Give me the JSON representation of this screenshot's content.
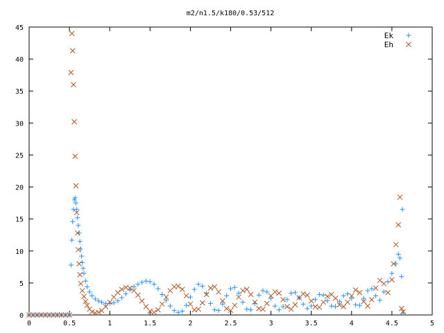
{
  "chart_data": {
    "type": "scatter",
    "title": "m2/n1.5/k180/0.53/512",
    "xlim": [
      0,
      5
    ],
    "ylim": [
      0,
      45
    ],
    "xticks": [
      "0",
      "0.5",
      "1",
      "1.5",
      "2",
      "2.5",
      "3",
      "3.5",
      "4",
      "4.5",
      "5"
    ],
    "yticks": [
      "0",
      "5",
      "10",
      "15",
      "20",
      "25",
      "30",
      "35",
      "40",
      "45"
    ],
    "grid": false,
    "legend_position": "top-right",
    "series": [
      {
        "name": "Ek",
        "marker": "plus",
        "color": "#1e90ff",
        "points": [
          [
            0.0,
            0
          ],
          [
            0.05,
            0
          ],
          [
            0.1,
            0
          ],
          [
            0.15,
            0
          ],
          [
            0.2,
            0
          ],
          [
            0.25,
            0
          ],
          [
            0.3,
            0
          ],
          [
            0.35,
            0
          ],
          [
            0.4,
            0
          ],
          [
            0.45,
            0
          ],
          [
            0.5,
            0
          ],
          [
            0.52,
            7.8
          ],
          [
            0.53,
            11.7
          ],
          [
            0.54,
            14.6
          ],
          [
            0.55,
            16.5
          ],
          [
            0.56,
            18.0
          ],
          [
            0.57,
            18.3
          ],
          [
            0.58,
            17.5
          ],
          [
            0.59,
            16.5
          ],
          [
            0.6,
            15.2
          ],
          [
            0.61,
            14.0
          ],
          [
            0.62,
            12.8
          ],
          [
            0.63,
            11.5
          ],
          [
            0.64,
            10.3
          ],
          [
            0.65,
            9.2
          ],
          [
            0.66,
            8.2
          ],
          [
            0.67,
            7.3
          ],
          [
            0.68,
            6.5
          ],
          [
            0.7,
            5.3
          ],
          [
            0.72,
            4.4
          ],
          [
            0.75,
            3.6
          ],
          [
            0.78,
            3.0
          ],
          [
            0.82,
            2.5
          ],
          [
            0.86,
            2.2
          ],
          [
            0.9,
            2.0
          ],
          [
            0.95,
            1.8
          ],
          [
            1.0,
            1.8
          ],
          [
            1.05,
            1.9
          ],
          [
            1.1,
            2.2
          ],
          [
            1.15,
            2.7
          ],
          [
            1.2,
            3.3
          ],
          [
            1.25,
            3.9
          ],
          [
            1.3,
            4.4
          ],
          [
            1.35,
            4.8
          ],
          [
            1.4,
            5.1
          ],
          [
            1.45,
            5.3
          ],
          [
            1.5,
            5.2
          ],
          [
            1.55,
            4.8
          ],
          [
            1.6,
            4.1
          ],
          [
            1.65,
            3.2
          ],
          [
            1.7,
            2.3
          ],
          [
            1.75,
            1.4
          ],
          [
            1.8,
            0.7
          ],
          [
            1.85,
            0.4
          ],
          [
            1.9,
            0.6
          ],
          [
            1.95,
            1.5
          ],
          [
            2.0,
            2.8
          ],
          [
            2.05,
            4.0
          ],
          [
            2.1,
            4.8
          ],
          [
            2.15,
            4.5
          ],
          [
            2.2,
            3.4
          ],
          [
            2.25,
            1.8
          ],
          [
            2.3,
            0.8
          ],
          [
            2.35,
            0.7
          ],
          [
            2.4,
            1.7
          ],
          [
            2.45,
            3.0
          ],
          [
            2.5,
            4.1
          ],
          [
            2.55,
            4.3
          ],
          [
            2.6,
            3.4
          ],
          [
            2.65,
            2.0
          ],
          [
            2.7,
            0.9
          ],
          [
            2.75,
            0.8
          ],
          [
            2.8,
            1.8
          ],
          [
            2.85,
            3.1
          ],
          [
            2.9,
            3.8
          ],
          [
            2.95,
            3.6
          ],
          [
            3.0,
            2.6
          ],
          [
            3.05,
            1.4
          ],
          [
            3.1,
            0.8
          ],
          [
            3.15,
            1.3
          ],
          [
            3.2,
            2.4
          ],
          [
            3.25,
            3.4
          ],
          [
            3.3,
            3.5
          ],
          [
            3.35,
            2.7
          ],
          [
            3.4,
            1.7
          ],
          [
            3.45,
            1.0
          ],
          [
            3.5,
            1.4
          ],
          [
            3.55,
            2.4
          ],
          [
            3.6,
            3.2
          ],
          [
            3.65,
            3.1
          ],
          [
            3.7,
            2.2
          ],
          [
            3.75,
            1.4
          ],
          [
            3.8,
            1.3
          ],
          [
            3.85,
            2.1
          ],
          [
            3.9,
            3.0
          ],
          [
            3.95,
            3.3
          ],
          [
            4.0,
            2.6
          ],
          [
            4.05,
            1.6
          ],
          [
            4.1,
            1.5
          ],
          [
            4.15,
            2.6
          ],
          [
            4.2,
            3.8
          ],
          [
            4.25,
            4.1
          ],
          [
            4.3,
            3.0
          ],
          [
            4.35,
            2.3
          ],
          [
            4.4,
            3.6
          ],
          [
            4.45,
            5.2
          ],
          [
            4.5,
            6.5
          ],
          [
            4.55,
            8.0
          ],
          [
            4.58,
            9.5
          ],
          [
            4.6,
            8.9
          ],
          [
            4.62,
            6.0
          ],
          [
            4.63,
            16.5
          ],
          [
            4.64,
            0.3
          ]
        ]
      },
      {
        "name": "Eh",
        "marker": "cross",
        "color": "#b0521c",
        "points": [
          [
            0.0,
            0
          ],
          [
            0.05,
            0
          ],
          [
            0.1,
            0
          ],
          [
            0.15,
            0
          ],
          [
            0.2,
            0
          ],
          [
            0.25,
            0
          ],
          [
            0.3,
            0
          ],
          [
            0.35,
            0
          ],
          [
            0.4,
            0
          ],
          [
            0.45,
            0
          ],
          [
            0.5,
            0
          ],
          [
            0.52,
            37.9
          ],
          [
            0.53,
            44.0
          ],
          [
            0.54,
            41.3
          ],
          [
            0.55,
            36.0
          ],
          [
            0.56,
            30.2
          ],
          [
            0.57,
            24.8
          ],
          [
            0.58,
            20.2
          ],
          [
            0.59,
            16.0
          ],
          [
            0.6,
            12.8
          ],
          [
            0.61,
            10.2
          ],
          [
            0.62,
            8.0
          ],
          [
            0.63,
            6.3
          ],
          [
            0.64,
            4.9
          ],
          [
            0.66,
            3.8
          ],
          [
            0.68,
            2.9
          ],
          [
            0.7,
            2.1
          ],
          [
            0.72,
            1.5
          ],
          [
            0.75,
            0.9
          ],
          [
            0.78,
            0.5
          ],
          [
            0.82,
            0.3
          ],
          [
            0.86,
            0.4
          ],
          [
            0.9,
            0.7
          ],
          [
            0.95,
            1.3
          ],
          [
            1.0,
            2.0
          ],
          [
            1.05,
            2.8
          ],
          [
            1.1,
            3.5
          ],
          [
            1.15,
            4.0
          ],
          [
            1.2,
            4.3
          ],
          [
            1.25,
            4.2
          ],
          [
            1.3,
            3.8
          ],
          [
            1.35,
            3.1
          ],
          [
            1.4,
            2.2
          ],
          [
            1.45,
            1.3
          ],
          [
            1.5,
            0.6
          ],
          [
            1.55,
            0.4
          ],
          [
            1.6,
            0.8
          ],
          [
            1.65,
            1.7
          ],
          [
            1.7,
            2.8
          ],
          [
            1.75,
            3.8
          ],
          [
            1.8,
            4.4
          ],
          [
            1.85,
            4.5
          ],
          [
            1.9,
            4.0
          ],
          [
            1.95,
            3.0
          ],
          [
            2.0,
            1.7
          ],
          [
            2.05,
            0.8
          ],
          [
            2.1,
            0.9
          ],
          [
            2.15,
            1.9
          ],
          [
            2.2,
            3.2
          ],
          [
            2.25,
            4.2
          ],
          [
            2.3,
            4.4
          ],
          [
            2.35,
            3.6
          ],
          [
            2.4,
            2.2
          ],
          [
            2.45,
            1.0
          ],
          [
            2.5,
            0.7
          ],
          [
            2.55,
            1.5
          ],
          [
            2.6,
            2.8
          ],
          [
            2.65,
            3.8
          ],
          [
            2.7,
            4.0
          ],
          [
            2.75,
            3.2
          ],
          [
            2.8,
            2.0
          ],
          [
            2.85,
            1.0
          ],
          [
            2.9,
            0.9
          ],
          [
            2.95,
            1.8
          ],
          [
            3.0,
            3.0
          ],
          [
            3.05,
            3.6
          ],
          [
            3.1,
            3.4
          ],
          [
            3.15,
            2.4
          ],
          [
            3.2,
            1.3
          ],
          [
            3.25,
            0.9
          ],
          [
            3.3,
            1.6
          ],
          [
            3.35,
            2.7
          ],
          [
            3.4,
            3.3
          ],
          [
            3.45,
            3.1
          ],
          [
            3.5,
            2.2
          ],
          [
            3.55,
            1.3
          ],
          [
            3.6,
            1.2
          ],
          [
            3.65,
            2.0
          ],
          [
            3.7,
            2.9
          ],
          [
            3.75,
            3.2
          ],
          [
            3.8,
            2.6
          ],
          [
            3.85,
            1.6
          ],
          [
            3.9,
            1.3
          ],
          [
            3.95,
            2.0
          ],
          [
            4.0,
            3.0
          ],
          [
            4.05,
            3.9
          ],
          [
            4.1,
            3.5
          ],
          [
            4.15,
            2.1
          ],
          [
            4.2,
            1.4
          ],
          [
            4.25,
            2.4
          ],
          [
            4.3,
            4.2
          ],
          [
            4.35,
            5.4
          ],
          [
            4.4,
            4.9
          ],
          [
            4.45,
            3.5
          ],
          [
            4.5,
            5.5
          ],
          [
            4.52,
            8.0
          ],
          [
            4.55,
            11.0
          ],
          [
            4.58,
            14.1
          ],
          [
            4.6,
            18.4
          ],
          [
            4.62,
            1.0
          ],
          [
            4.64,
            0.5
          ]
        ]
      }
    ]
  }
}
